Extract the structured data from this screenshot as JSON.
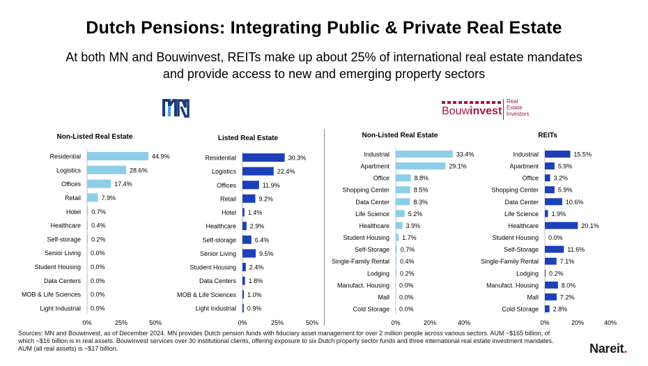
{
  "header": {
    "title": "Dutch Pensions: Integrating Public & Private Real Estate",
    "subtitle_line1": "At both MN and Bouwinvest, REITs make up about 25% of international real estate mandates",
    "subtitle_line2": "and provide access to new and emerging property sectors"
  },
  "logos": {
    "mn": "MN",
    "bouwinvest_word_a": "Bouw",
    "bouwinvest_word_b": "invest",
    "bouwinvest_tag": [
      "Real",
      "Estate",
      "Investors"
    ]
  },
  "colors": {
    "non_listed": "#8ecdea",
    "listed": "#1d3fb8",
    "brand_bouwinvest": "#a0174a",
    "nareit_dot": "#d9232e"
  },
  "chart_data": [
    {
      "type": "bar",
      "orientation": "horizontal",
      "group": "MN",
      "title": "Non-Listed Real Estate",
      "categories": [
        "Residential",
        "Logistics",
        "Offices",
        "Retail",
        "Hotel",
        "Healthcare",
        "Self-storage",
        "Senior Living",
        "Student Housing",
        "Data Centers",
        "MOB & Life Sciences",
        "Light Industrial"
      ],
      "values": [
        44.9,
        28.6,
        17.4,
        7.9,
        0.7,
        0.4,
        0.2,
        0.0,
        0.0,
        0.0,
        0.0,
        0.0
      ],
      "value_labels": [
        "44.9%",
        "28.6%",
        "17.4%",
        "7.9%",
        "0.7%",
        "0.4%",
        "0.2%",
        "0.0%",
        "0.0%",
        "0.0%",
        "0.0%",
        "0.0%"
      ],
      "xlim": [
        0,
        50
      ],
      "xticks": [
        "0%",
        "25%",
        "50%"
      ],
      "color": "#8ecdea"
    },
    {
      "type": "bar",
      "orientation": "horizontal",
      "group": "MN",
      "title": "Listed Real Estate",
      "categories": [
        "Residential",
        "Logistics",
        "Offices",
        "Retail",
        "Hotel",
        "Healthcare",
        "Self-storage",
        "Senior Living",
        "Student Housing",
        "Data Centers",
        "MOB & Life Sciences",
        "Light Industrial"
      ],
      "values": [
        30.3,
        22.4,
        11.9,
        9.2,
        1.4,
        2.9,
        6.4,
        9.5,
        2.4,
        1.8,
        1.0,
        0.9
      ],
      "value_labels": [
        "30.3%",
        "22.4%",
        "11.9%",
        "9.2%",
        "1.4%",
        "2.9%",
        "6.4%",
        "9.5%",
        "2.4%",
        "1.8%",
        "1.0%",
        "0.9%"
      ],
      "xlim": [
        0,
        50
      ],
      "xticks": [
        "0%",
        "25%",
        "50%"
      ],
      "color": "#1d3fb8"
    },
    {
      "type": "bar",
      "orientation": "horizontal",
      "group": "Bouwinvest",
      "title": "Non-Listed Real Estate",
      "categories": [
        "Industrial",
        "Apartment",
        "Office",
        "Shopping Center",
        "Data Center",
        "Life Science",
        "Healthcare",
        "Student Housing",
        "Self-Storage",
        "Single-Family Rental",
        "Lodging",
        "Manufact. Housing",
        "Mall",
        "Cold Storage"
      ],
      "values": [
        33.4,
        29.1,
        8.8,
        8.5,
        8.3,
        5.2,
        3.9,
        1.7,
        0.7,
        0.4,
        0.2,
        0.0,
        0.0,
        0.0
      ],
      "value_labels": [
        "33.4%",
        "29.1%",
        "8.8%",
        "8.5%",
        "8.3%",
        "5.2%",
        "3.9%",
        "1.7%",
        "0.7%",
        "0.4%",
        "0.2%",
        "0.0%",
        "0.0%",
        "0.0%"
      ],
      "xlim": [
        0,
        40
      ],
      "xticks": [
        "0%",
        "20%",
        "40%"
      ],
      "color": "#8ecdea"
    },
    {
      "type": "bar",
      "orientation": "horizontal",
      "group": "Bouwinvest",
      "title": "REITs",
      "categories": [
        "Industrial",
        "Apartment",
        "Office",
        "Shopping Center",
        "Data Center",
        "Life Science",
        "Healthcare",
        "Student Housing",
        "Self-Storage",
        "Single-Family Rental",
        "Lodging",
        "Manufact. Housing",
        "Mall",
        "Cold Storage"
      ],
      "values": [
        15.5,
        5.9,
        3.2,
        5.9,
        10.6,
        1.9,
        20.1,
        0.0,
        11.6,
        7.1,
        0.2,
        8.0,
        7.2,
        2.8
      ],
      "value_labels": [
        "15.5%",
        "5.9%",
        "3.2%",
        "5.9%",
        "10.6%",
        "1.9%",
        "20.1%",
        "0.0%",
        "11.6%",
        "7.1%",
        "0.2%",
        "8.0%",
        "7.2%",
        "2.8%"
      ],
      "xlim": [
        0,
        40
      ],
      "xticks": [
        "0%",
        "20%",
        "40%"
      ],
      "color": "#1d3fb8"
    }
  ],
  "footer": {
    "sources": "Sources: MN and Bouwinvest, as of December 2024. MN provides Dutch pension funds with fiduciary asset management for over 2 million people across various sectors. AUM ~$165 billion, of which ~$16 billion is in real assets. Bouwinvest services over 30 institutional clients, offering exposure to six Dutch property sector funds and three international real estate investment mandates. AUM (all real assets) is ~$17 billion.",
    "brand": "Nareit",
    "brand_dot": "."
  }
}
